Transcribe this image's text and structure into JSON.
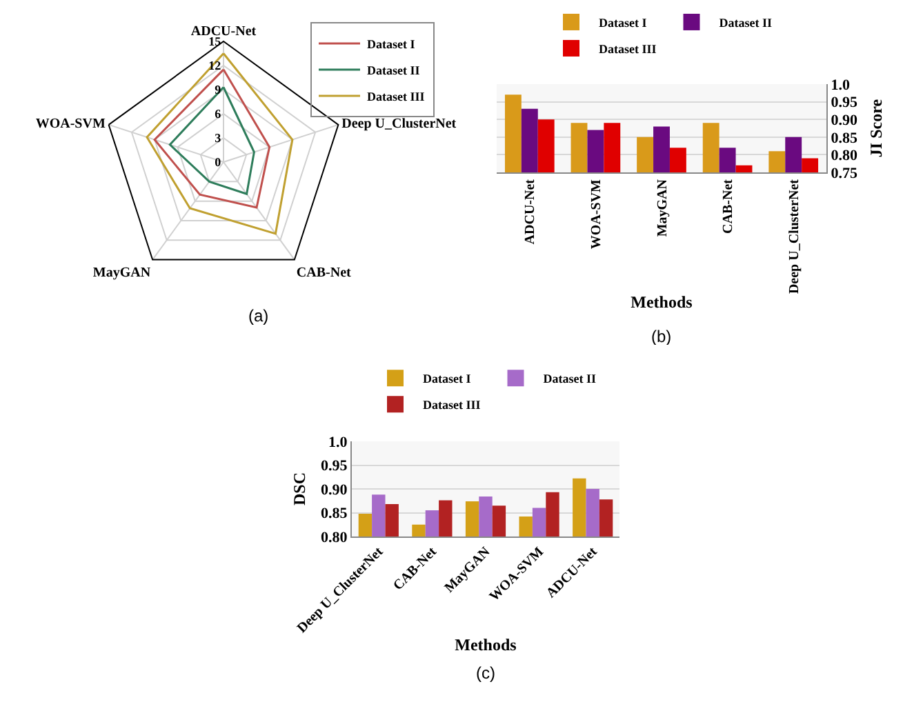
{
  "chart_data": [
    {
      "type": "radar",
      "categories": [
        "ADCU-Net",
        "Deep U_ClusterNet",
        "CAB-Net",
        "MayGAN",
        "WOA-SVM"
      ],
      "ylim": [
        0,
        15
      ],
      "yticks": [
        0,
        3,
        6,
        9,
        12,
        15
      ],
      "grid": true,
      "legend": "top right",
      "annotations": [
        "(a)"
      ],
      "series": [
        {
          "name": "Dataset I",
          "color": "#c0504d",
          "values": [
            11.5,
            6.0,
            7.0,
            5.0,
            9.0
          ]
        },
        {
          "name": "Dataset II",
          "color": "#2e7d5b",
          "values": [
            9.3,
            4.0,
            4.9,
            3.0,
            7.0
          ]
        },
        {
          "name": "Dataset III",
          "color": "#c0a030",
          "values": [
            13.5,
            9.0,
            11.0,
            7.1,
            10.0
          ]
        }
      ]
    },
    {
      "type": "bar",
      "categories": [
        "ADCU-Net",
        "WOA-SVM",
        "MayGAN",
        "CAB-Net",
        "Deep U_ClusterNet"
      ],
      "xlabel": "Methods",
      "ylabel": "JI Score",
      "ylim": [
        0.75,
        1.0
      ],
      "yticks": [
        0.75,
        {
          "value": 0.8,
          "label": "0.80"
        },
        0.85,
        {
          "value": 0.9,
          "label": "0.90"
        },
        0.95,
        {
          "value": 1.0,
          "label": "1.0"
        }
      ],
      "grid": true,
      "legend": "top",
      "annotations": [
        "(b)"
      ],
      "series": [
        {
          "name": "Dataset I",
          "color": "#d99a1a",
          "values": [
            0.97,
            0.89,
            0.85,
            0.89,
            0.81
          ]
        },
        {
          "name": "Dataset II",
          "color": "#6a0a80",
          "values": [
            0.93,
            0.87,
            0.88,
            0.82,
            0.85
          ]
        },
        {
          "name": "Dataset III",
          "color": "#e00000",
          "values": [
            0.9,
            0.89,
            0.82,
            0.77,
            0.79
          ]
        }
      ]
    },
    {
      "type": "bar",
      "categories": [
        "Deep U_ClusterNet",
        "CAB-Net",
        "MayGAN",
        "WOA-SVM",
        "ADCU-Net"
      ],
      "xlabel": "Methods",
      "ylabel": "DSC",
      "ylim": [
        0.8,
        1.0
      ],
      "yticks": [
        {
          "value": 0.8,
          "label": "0.80"
        },
        0.85,
        {
          "value": 0.9,
          "label": "0.90"
        },
        0.95,
        {
          "value": 1.0,
          "label": "1.0"
        }
      ],
      "grid": "y",
      "legend": "top",
      "annotations": [
        "(c)"
      ],
      "series": [
        {
          "name": "Dataset I",
          "color": "#d4a017",
          "values": [
            0.848,
            0.825,
            0.874,
            0.842,
            0.922
          ]
        },
        {
          "name": "Dataset II",
          "color": "#a66bc9",
          "values": [
            0.888,
            0.855,
            0.884,
            0.86,
            0.9
          ]
        },
        {
          "name": "Dataset III",
          "color": "#b22222",
          "values": [
            0.868,
            0.876,
            0.865,
            0.893,
            0.878
          ]
        }
      ]
    }
  ]
}
